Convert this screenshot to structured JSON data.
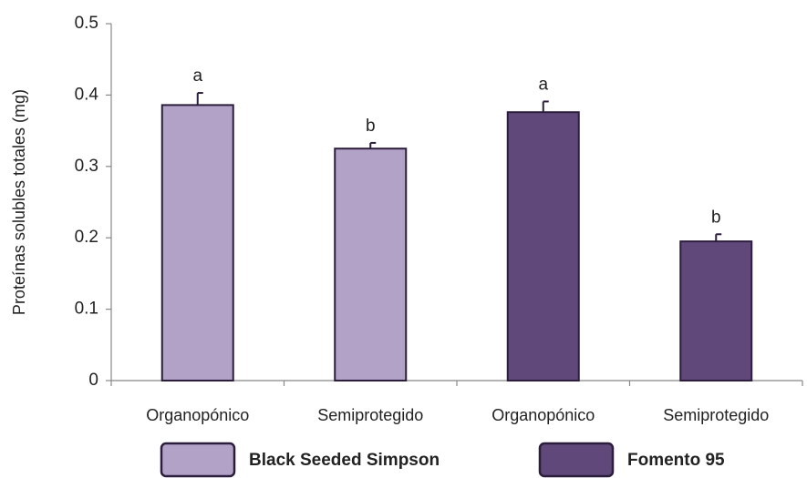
{
  "chart_data": {
    "type": "bar",
    "y_label": "Proteínas solubles totales (mg)",
    "categories": [
      "Organopónico",
      "Semiprotegido",
      "Organopónico",
      "Semiprotegido"
    ],
    "series": [
      {
        "name": "Black Seeded Simpson",
        "color": "#b3a2c7",
        "values": [
          0.386,
          0.325,
          null,
          null
        ],
        "errors": [
          0.017,
          0.008,
          null,
          null
        ]
      },
      {
        "name": "Fomento 95",
        "color": "#60497a",
        "values": [
          null,
          null,
          0.376,
          0.195
        ],
        "errors": [
          null,
          null,
          0.015,
          0.01
        ]
      }
    ],
    "annotations": [
      "a",
      "b",
      "a",
      "b"
    ],
    "ylim": [
      0,
      0.5
    ],
    "yticks": [
      0,
      0.1,
      0.2,
      0.3,
      0.4,
      0.5
    ]
  }
}
